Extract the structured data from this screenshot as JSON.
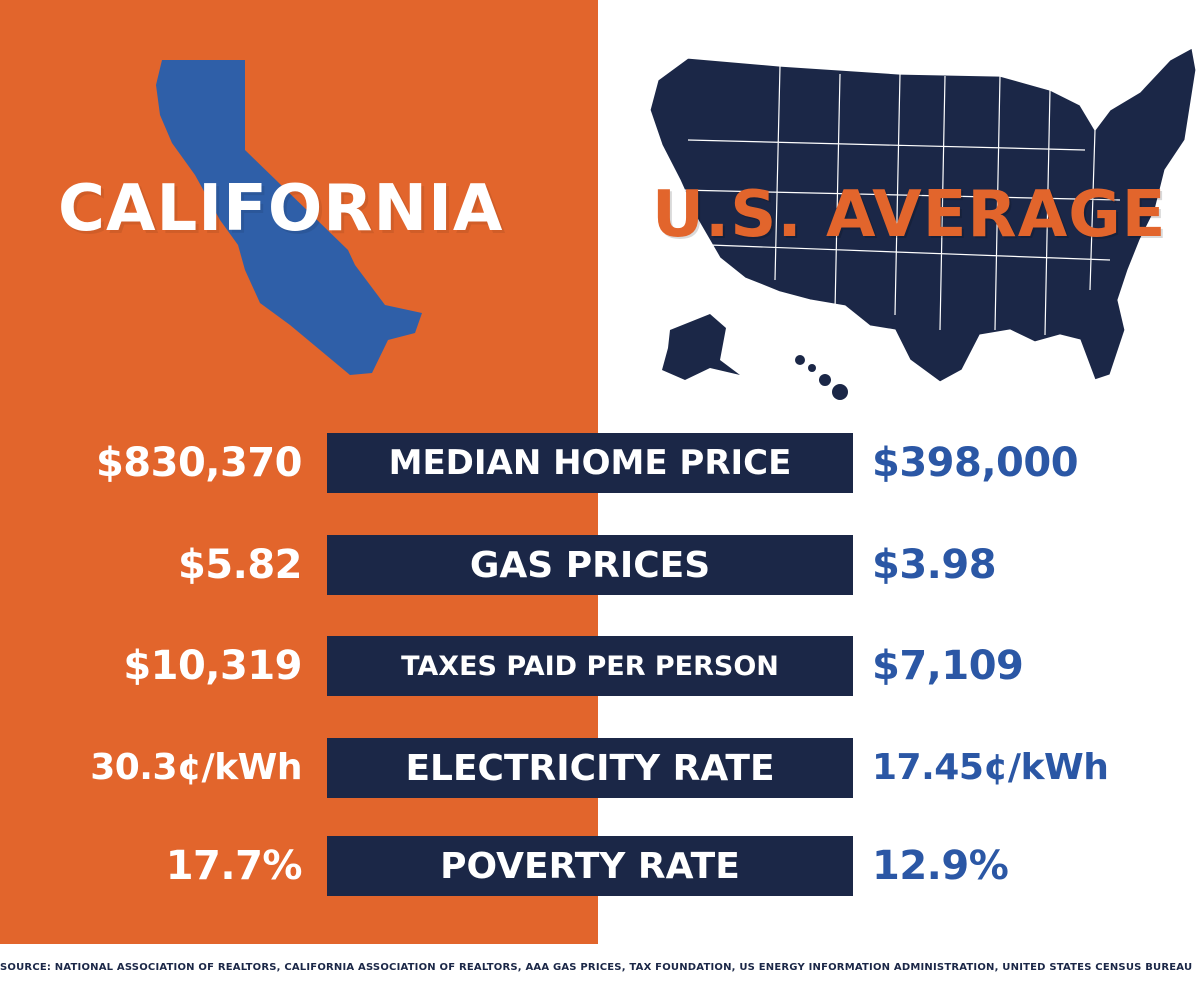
{
  "california": {
    "title": "CALIFORNIA",
    "panel_color": "#e2652c",
    "map_color": "#2f5fa8"
  },
  "us": {
    "title": "U.S. AVERAGE",
    "map_color": "#1b2747",
    "title_color": "#e2652c"
  },
  "rows": [
    {
      "label": "MEDIAN HOME PRICE",
      "california": "$830,370",
      "us": "$398,000"
    },
    {
      "label": "GAS PRICES",
      "california": "$5.82",
      "us": "$3.98"
    },
    {
      "label": "TAXES PAID PER PERSON",
      "california": "$10,319",
      "us": "$7,109"
    },
    {
      "label": "ELECTRICITY RATE",
      "california": "30.3¢/kWh",
      "us": "17.45¢/kWh"
    },
    {
      "label": "POVERTY RATE",
      "california": "17.7%",
      "us": "12.9%"
    }
  ],
  "source": "SOURCE: NATIONAL ASSOCIATION OF REALTORS, CALIFORNIA ASSOCIATION OF REALTORS, AAA GAS PRICES, TAX FOUNDATION, US ENERGY INFORMATION ADMINISTRATION, UNITED STATES CENSUS BUREAU"
}
